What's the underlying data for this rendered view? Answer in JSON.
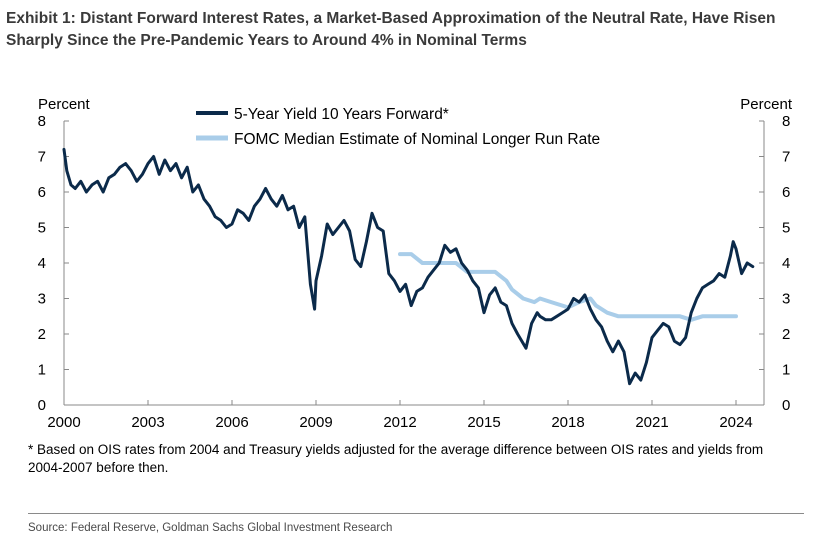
{
  "title": "Exhibit 1: Distant Forward Interest Rates, a Market-Based Approximation of the Neutral Rate, Have Risen Sharply Since the Pre-Pandemic Years to Around 4% in Nominal Terms",
  "footnote": "* Based on OIS rates from 2004 and Treasury yields adjusted for the average difference between OIS rates and yields from 2004-2007 before then.",
  "source": "Source: Federal Reserve, Goldman Sachs Global Investment Research",
  "chart_data": {
    "type": "line",
    "ylabel_left": "Percent",
    "ylabel_right": "Percent",
    "xlim": [
      2000,
      2025
    ],
    "ylim": [
      0,
      8
    ],
    "xticks": [
      2000,
      2003,
      2006,
      2009,
      2012,
      2015,
      2018,
      2021,
      2024
    ],
    "yticks": [
      0,
      1,
      2,
      3,
      4,
      5,
      6,
      7,
      8
    ],
    "grid": false,
    "legend_position": "top-center",
    "series": [
      {
        "name": "5-Year Yield 10 Years Forward*",
        "color": "#0b2a4a",
        "x": [
          2000.0,
          2000.1,
          2000.25,
          2000.4,
          2000.6,
          2000.8,
          2001.0,
          2001.2,
          2001.4,
          2001.6,
          2001.8,
          2002.0,
          2002.2,
          2002.4,
          2002.6,
          2002.8,
          2003.0,
          2003.2,
          2003.4,
          2003.6,
          2003.8,
          2004.0,
          2004.2,
          2004.4,
          2004.6,
          2004.8,
          2005.0,
          2005.2,
          2005.4,
          2005.6,
          2005.8,
          2006.0,
          2006.2,
          2006.4,
          2006.6,
          2006.8,
          2007.0,
          2007.2,
          2007.4,
          2007.6,
          2007.8,
          2008.0,
          2008.2,
          2008.4,
          2008.6,
          2008.8,
          2008.95,
          2009.0,
          2009.2,
          2009.4,
          2009.6,
          2009.8,
          2010.0,
          2010.2,
          2010.4,
          2010.6,
          2010.8,
          2011.0,
          2011.2,
          2011.4,
          2011.6,
          2011.8,
          2012.0,
          2012.2,
          2012.4,
          2012.6,
          2012.8,
          2013.0,
          2013.2,
          2013.4,
          2013.6,
          2013.8,
          2014.0,
          2014.2,
          2014.4,
          2014.6,
          2014.8,
          2015.0,
          2015.2,
          2015.4,
          2015.6,
          2015.8,
          2016.0,
          2016.2,
          2016.5,
          2016.7,
          2016.9,
          2017.0,
          2017.2,
          2017.4,
          2017.6,
          2017.8,
          2018.0,
          2018.2,
          2018.4,
          2018.6,
          2018.8,
          2019.0,
          2019.2,
          2019.4,
          2019.6,
          2019.8,
          2020.0,
          2020.2,
          2020.4,
          2020.6,
          2020.8,
          2021.0,
          2021.2,
          2021.4,
          2021.6,
          2021.8,
          2022.0,
          2022.2,
          2022.4,
          2022.6,
          2022.8,
          2023.0,
          2023.2,
          2023.4,
          2023.6,
          2023.8,
          2023.9,
          2024.0,
          2024.2,
          2024.4,
          2024.6
        ],
        "y": [
          7.2,
          6.6,
          6.2,
          6.1,
          6.3,
          6.0,
          6.2,
          6.3,
          6.0,
          6.4,
          6.5,
          6.7,
          6.8,
          6.6,
          6.3,
          6.5,
          6.8,
          7.0,
          6.5,
          6.9,
          6.6,
          6.8,
          6.4,
          6.7,
          6.0,
          6.2,
          5.8,
          5.6,
          5.3,
          5.2,
          5.0,
          5.1,
          5.5,
          5.4,
          5.2,
          5.6,
          5.8,
          6.1,
          5.8,
          5.6,
          5.9,
          5.5,
          5.6,
          5.0,
          5.3,
          3.4,
          2.7,
          3.5,
          4.2,
          5.1,
          4.8,
          5.0,
          5.2,
          4.9,
          4.1,
          3.9,
          4.6,
          5.4,
          5.0,
          4.9,
          3.7,
          3.5,
          3.2,
          3.4,
          2.8,
          3.2,
          3.3,
          3.6,
          3.8,
          4.0,
          4.5,
          4.3,
          4.4,
          4.0,
          3.8,
          3.5,
          3.3,
          2.6,
          3.1,
          3.3,
          2.9,
          2.8,
          2.3,
          2.0,
          1.6,
          2.3,
          2.6,
          2.5,
          2.4,
          2.4,
          2.5,
          2.6,
          2.7,
          3.0,
          2.9,
          3.1,
          2.7,
          2.4,
          2.2,
          1.8,
          1.5,
          1.8,
          1.5,
          0.6,
          0.9,
          0.7,
          1.2,
          1.9,
          2.1,
          2.3,
          2.2,
          1.8,
          1.7,
          1.9,
          2.6,
          3.0,
          3.3,
          3.4,
          3.5,
          3.7,
          3.6,
          4.2,
          4.6,
          4.4,
          3.7,
          4.0,
          3.9
        ],
        "line_width": 3
      },
      {
        "name": "FOMC Median Estimate of Nominal Longer Run Rate",
        "color": "#a9cde9",
        "x": [
          2012.0,
          2012.4,
          2012.8,
          2013.2,
          2013.6,
          2014.0,
          2014.4,
          2014.8,
          2015.0,
          2015.4,
          2015.8,
          2016.0,
          2016.4,
          2016.8,
          2017.0,
          2017.4,
          2017.8,
          2018.0,
          2018.4,
          2018.8,
          2019.0,
          2019.4,
          2019.8,
          2020.0,
          2020.5,
          2021.0,
          2021.5,
          2022.0,
          2022.4,
          2022.8,
          2023.2,
          2023.6,
          2024.0
        ],
        "y": [
          4.25,
          4.25,
          4.0,
          4.0,
          4.0,
          4.0,
          3.75,
          3.75,
          3.75,
          3.75,
          3.5,
          3.25,
          3.0,
          2.9,
          3.0,
          2.9,
          2.8,
          2.75,
          2.9,
          3.0,
          2.8,
          2.6,
          2.5,
          2.5,
          2.5,
          2.5,
          2.5,
          2.5,
          2.4,
          2.5,
          2.5,
          2.5,
          2.5
        ],
        "line_width": 4
      }
    ]
  }
}
